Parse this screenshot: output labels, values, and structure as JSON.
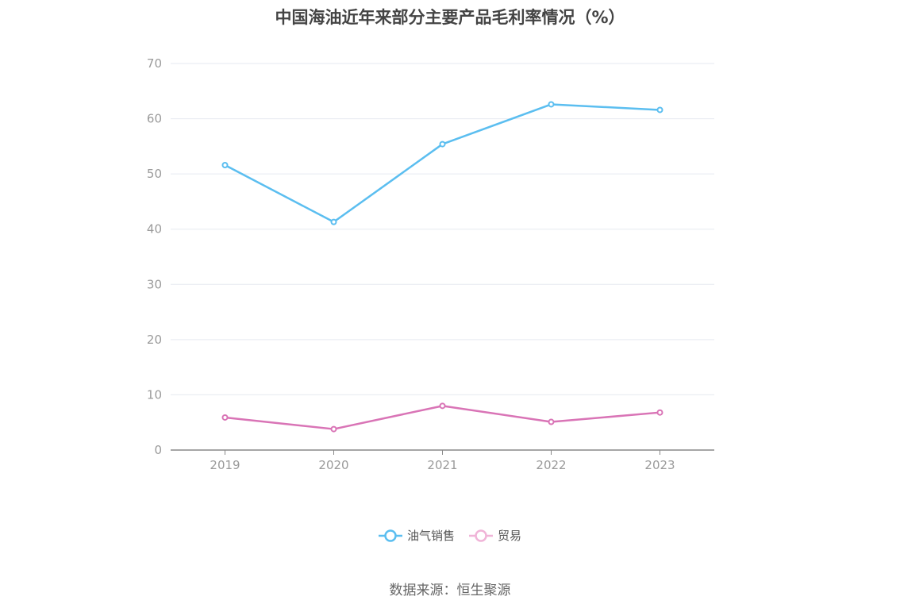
{
  "chart_data": {
    "type": "line",
    "title": "中国海油近年来部分主要产品毛利率情况（%）",
    "categories": [
      "2019",
      "2020",
      "2021",
      "2022",
      "2023"
    ],
    "series": [
      {
        "name": "油气销售",
        "values": [
          51.6,
          41.3,
          55.4,
          62.6,
          61.6
        ],
        "color": "#5bbef0"
      },
      {
        "name": "贸易",
        "values": [
          5.9,
          3.8,
          8.0,
          5.1,
          6.8
        ],
        "color": "#d974b6"
      }
    ],
    "ylim": [
      0,
      70
    ],
    "yticks": [
      0,
      10,
      20,
      30,
      40,
      50,
      60,
      70
    ],
    "grid": true,
    "legend": "bottom-center"
  },
  "source": "数据来源：恒生聚源"
}
